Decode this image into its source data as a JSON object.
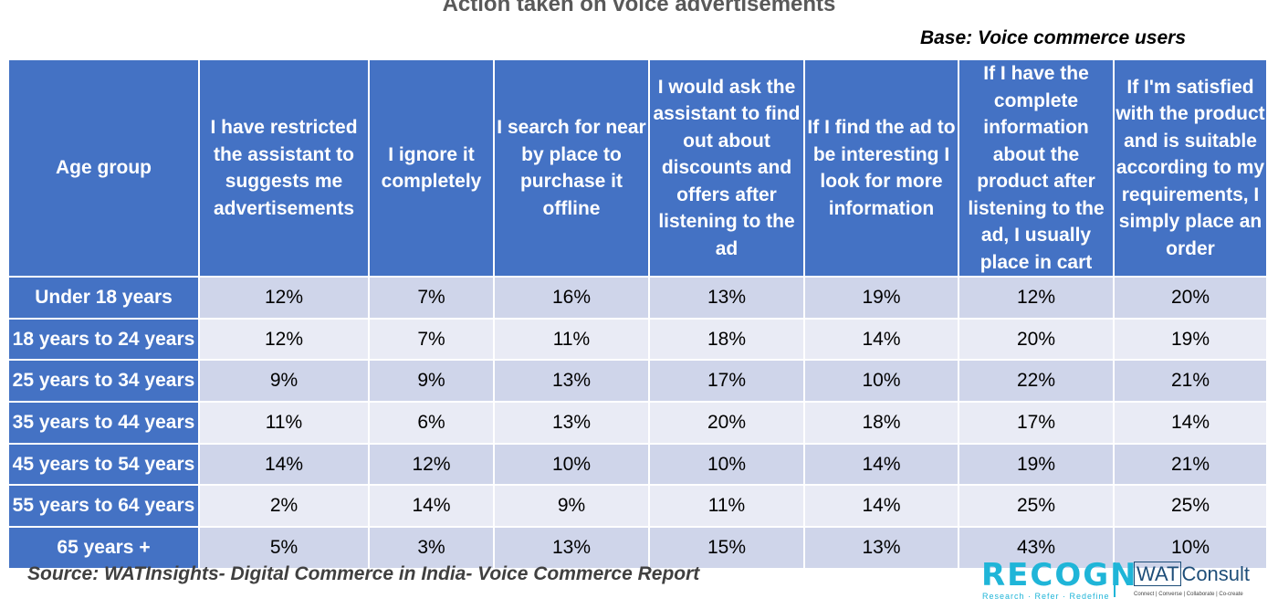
{
  "title": "Action taken on voice advertisements",
  "base": "Base: Voice commerce users",
  "source": "Source: WATInsights- Digital Commerce in India- Voice Commerce Report",
  "logos": {
    "recogn": "RECOGN",
    "recogn_tagline": "Research · Refer · Redefine",
    "wat": "WAT",
    "consult": "Consult",
    "wat_tagline": "Connect | Converse | Collaborate | Co-create"
  },
  "colors": {
    "header_bg": "#4472c4",
    "row_odd": "#cfd5ea",
    "row_even": "#e9ebf5",
    "title": "#595959",
    "brand": "#1fb5d8"
  },
  "chart_data": {
    "type": "table",
    "title": "Action taken on voice advertisements",
    "columns": [
      "Age group",
      "I have restricted the assistant to suggests me advertisements",
      "I ignore it completely",
      "I search for near by place to purchase it offline",
      "I would ask the assistant to find out about discounts and offers after listening to the ad",
      "If I find the ad to be interesting I look for more information",
      "If I have the complete information about the product after listening to the ad, I usually place in cart",
      "If I'm satisfied with the product and is suitable according to my requirements, I simply place an order"
    ],
    "rows": [
      [
        "Under 18 years",
        "12%",
        "7%",
        "16%",
        "13%",
        "19%",
        "12%",
        "20%"
      ],
      [
        "18 years to 24 years",
        "12%",
        "7%",
        "11%",
        "18%",
        "14%",
        "20%",
        "19%"
      ],
      [
        "25 years to 34 years",
        "9%",
        "9%",
        "13%",
        "17%",
        "10%",
        "22%",
        "21%"
      ],
      [
        "35 years to 44 years",
        "11%",
        "6%",
        "13%",
        "20%",
        "18%",
        "17%",
        "14%"
      ],
      [
        "45 years to 54 years",
        "14%",
        "12%",
        "10%",
        "10%",
        "14%",
        "19%",
        "21%"
      ],
      [
        "55 years to 64 years",
        "2%",
        "14%",
        "9%",
        "11%",
        "14%",
        "25%",
        "25%"
      ],
      [
        "65 years +",
        "5%",
        "3%",
        "13%",
        "15%",
        "13%",
        "43%",
        "10%"
      ]
    ]
  }
}
